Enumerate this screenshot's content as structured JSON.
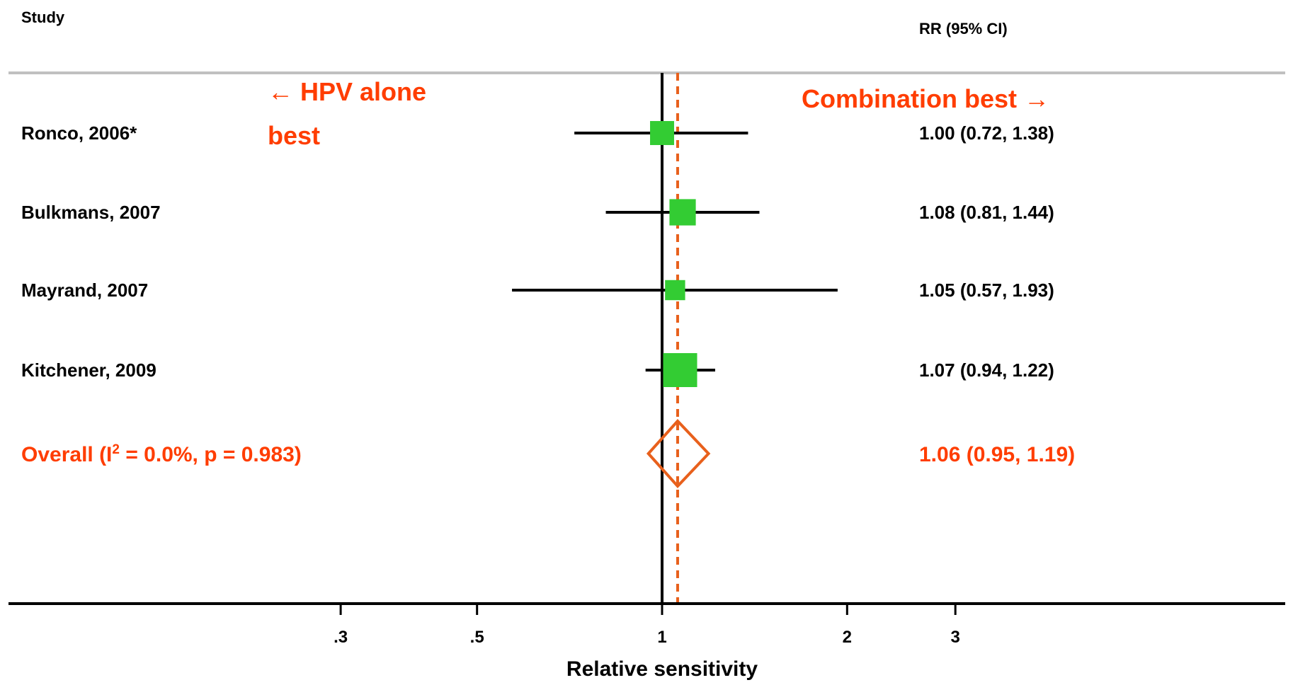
{
  "chart_data": {
    "type": "forest",
    "headers": {
      "study": "Study",
      "effect": "RR (95% CI)"
    },
    "xlabel": "Relative sensitivity",
    "x_scale": "log",
    "xlim": [
      0.16,
      8
    ],
    "ticks": [
      {
        "value": 0.3,
        "label": ".3"
      },
      {
        "value": 0.5,
        "label": ".5"
      },
      {
        "value": 1,
        "label": "1"
      },
      {
        "value": 2,
        "label": "2"
      },
      {
        "value": 3,
        "label": "3"
      }
    ],
    "reference_value": 1,
    "annotations": {
      "left_line1": "← HPV alone",
      "left_line2": "best",
      "right": "Combination best →"
    },
    "studies": [
      {
        "label": "Ronco, 2006*",
        "rr": 1.0,
        "lo": 0.72,
        "hi": 1.38,
        "weight": 0.5,
        "ci_text": "1.00 (0.72, 1.38)"
      },
      {
        "label": "Bulkmans, 2007",
        "rr": 1.08,
        "lo": 0.81,
        "hi": 1.44,
        "weight": 0.6,
        "ci_text": "1.08 (0.81, 1.44)"
      },
      {
        "label": "Mayrand, 2007",
        "rr": 1.05,
        "lo": 0.57,
        "hi": 1.93,
        "weight": 0.35,
        "ci_text": "1.05 (0.57, 1.93)"
      },
      {
        "label": "Kitchener, 2009",
        "rr": 1.07,
        "lo": 0.94,
        "hi": 1.22,
        "weight": 1.0,
        "ci_text": "1.07 (0.94, 1.22)"
      }
    ],
    "overall": {
      "label_prefix": "Overall  (I",
      "label_sup": "2",
      "label_suffix": " = 0.0%, p = 0.983)",
      "rr": 1.06,
      "lo": 0.95,
      "hi": 1.19,
      "ci_text": "1.06 (0.95, 1.19)"
    },
    "colors": {
      "square": "#33cc33",
      "overall": "#e8601c",
      "annotation": "#ff3d00",
      "header_rule": "#c0c0c0"
    }
  }
}
